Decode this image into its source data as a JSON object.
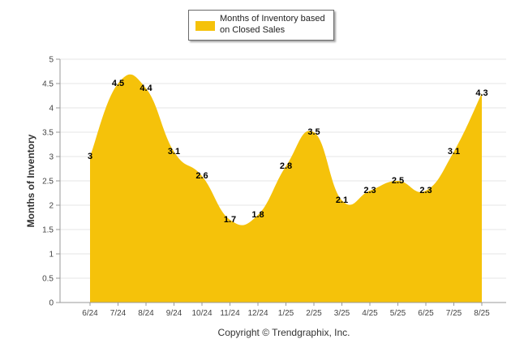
{
  "legend": {
    "label": "Months of Inventory based on Closed Sales"
  },
  "footer": {
    "copyright": "Copyright © Trendgraphix, Inc."
  },
  "colors": {
    "series": "#f5c20a",
    "grid": "#e6e6e6",
    "axis": "#999999"
  },
  "chart_data": {
    "type": "area",
    "title": "",
    "xlabel": "",
    "ylabel": "Months of Inventory",
    "categories": [
      "6/24",
      "7/24",
      "8/24",
      "9/24",
      "10/24",
      "11/24",
      "12/24",
      "1/25",
      "2/25",
      "3/25",
      "4/25",
      "5/25",
      "6/25",
      "7/25",
      "8/25"
    ],
    "series": [
      {
        "name": "Months of Inventory based on Closed Sales",
        "values": [
          3,
          4.5,
          4.4,
          3.1,
          2.6,
          1.7,
          1.8,
          2.8,
          3.5,
          2.1,
          2.3,
          2.5,
          2.3,
          3.1,
          4.3
        ],
        "labels": [
          "3",
          "4.5",
          "4.4",
          "3.1",
          "2.6",
          "1.7",
          "1.8",
          "2.8",
          "3.5",
          "2.1",
          "2.3",
          "2.5",
          "2.3",
          "3.1",
          "4.3"
        ]
      }
    ],
    "ylim": [
      0,
      5
    ],
    "yticks": [
      "0",
      "0.5",
      "1",
      "1.5",
      "2",
      "2.5",
      "3",
      "3.5",
      "4",
      "4.5",
      "5"
    ],
    "grid": true,
    "legend_position": "top-center"
  }
}
